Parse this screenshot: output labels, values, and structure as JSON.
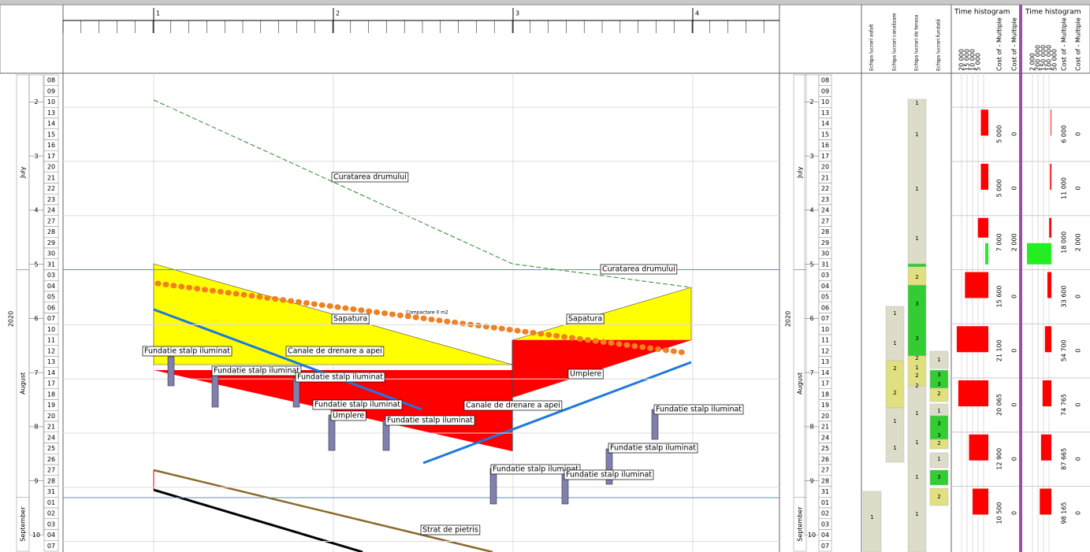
{
  "ruler": {
    "major": [
      "1",
      "2",
      "3",
      "4"
    ]
  },
  "calendar": {
    "year": "2020",
    "months": [
      "July",
      "August",
      "September"
    ],
    "weeks": [
      "2",
      "3",
      "4",
      "5",
      "6",
      "7",
      "8",
      "9",
      "10"
    ],
    "days": [
      "08",
      "09",
      "10",
      "13",
      "14",
      "15",
      "16",
      "17",
      "20",
      "21",
      "22",
      "23",
      "24",
      "27",
      "28",
      "29",
      "30",
      "31",
      "03",
      "04",
      "05",
      "06",
      "07",
      "10",
      "11",
      "12",
      "13",
      "14",
      "17",
      "18",
      "19",
      "20",
      "21",
      "24",
      "25",
      "26",
      "27",
      "28",
      "31",
      "01",
      "02",
      "03",
      "04",
      "07"
    ]
  },
  "activities": [
    "Curatarea drumului",
    "Curatarea drumului",
    "Sapatura",
    "Sapatura",
    "Compactare 0 m2",
    "Fundatie stalp iluminat",
    "Canale de drenare a apei",
    "Fundatie stalp iluminat",
    "Fundatie stalp iluminat",
    "Umplere",
    "Fundatie stalp iluminat",
    "Canale de drenare a apei",
    "Umplere",
    "Fundatie stalp iluminat",
    "Fundatie stalp iluminat",
    "Fundatie stalp iluminat",
    "Fundatie stalp iluminat",
    "Fundatie stalp iluminat",
    "Strat de pietris"
  ],
  "resources": [
    {
      "header": "Echipa lucrari asfalt",
      "cells": [
        "1"
      ]
    },
    {
      "header": "Echipa lucrari canalizare",
      "cells": [
        "1",
        "1",
        "2",
        "2",
        "1",
        "1"
      ]
    },
    {
      "header": "Echipa lucrari de terasa",
      "cells": [
        "1",
        "1",
        "1",
        "1",
        "2",
        "3",
        "3",
        "2",
        "1",
        "2",
        "2",
        "1",
        "1",
        "1",
        "1"
      ]
    },
    {
      "header": "Echipa lucrari fundatii",
      "cells": [
        "1",
        "3",
        "3",
        "2",
        "1",
        "3",
        "3",
        "2",
        "1",
        "3",
        "2"
      ]
    }
  ],
  "histograms": [
    {
      "title": "Time histogram",
      "columns": [
        "Cost of - Multiple",
        "Cost of - Multiple"
      ],
      "scale": [
        "20 000",
        "15 000",
        "10 000",
        "5 000"
      ],
      "main": [
        {
          "value": 5000,
          "label": "5 000"
        },
        {
          "value": 5000,
          "label": "5 000"
        },
        {
          "value": 7000,
          "label": "7 000"
        },
        {
          "value": 15600,
          "label": "15 600"
        },
        {
          "value": 21100,
          "label": "21 100"
        },
        {
          "value": 20065,
          "label": "20 065"
        },
        {
          "value": 12900,
          "label": "12 900"
        },
        {
          "value": 10500,
          "label": "10 500"
        }
      ],
      "secondary": [
        0,
        0,
        {
          "value": 2000,
          "label": "2 000"
        },
        0,
        0,
        0,
        0,
        0
      ]
    },
    {
      "title": "Time histogram",
      "columns": [
        "Cost of - Multiple",
        "Cost of - Multiple"
      ],
      "scale": [
        "2 000",
        "200 000",
        "150 000",
        "100 000",
        "50 000"
      ],
      "main": [
        {
          "value": 6000,
          "label": "6 000"
        },
        {
          "value": 11000,
          "label": "11 000"
        },
        {
          "value": 18000,
          "label": "18 000"
        },
        {
          "value": 33600,
          "label": "33 600"
        },
        {
          "value": 54700,
          "label": "54 700"
        },
        {
          "value": 74765,
          "label": "74 765"
        },
        {
          "value": 87665,
          "label": "87 665"
        },
        {
          "value": 98165,
          "label": "98 165"
        }
      ],
      "secondary": [
        0,
        0,
        {
          "value": 2000,
          "label": "2 000"
        },
        0,
        0,
        0,
        0,
        0
      ]
    }
  ]
}
